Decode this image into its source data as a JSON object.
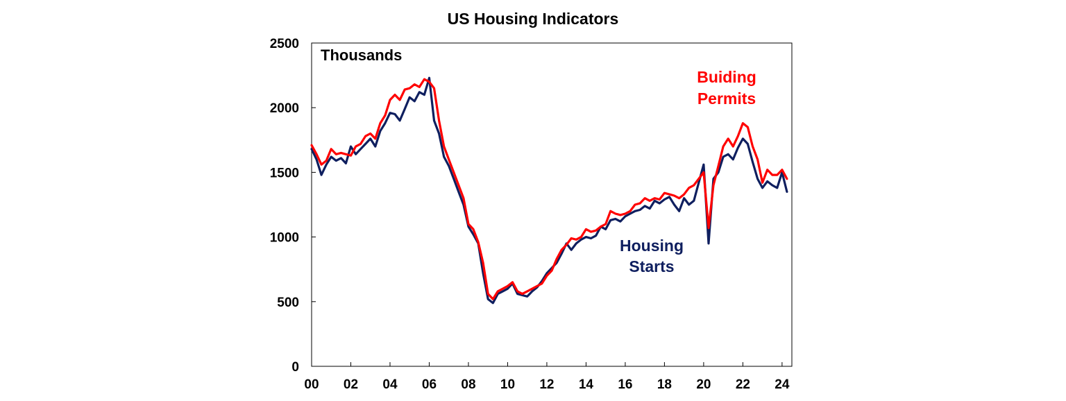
{
  "chart_data": {
    "type": "line",
    "title": "US Housing Indicators",
    "unit_label": "Thousands",
    "xlim": [
      2000,
      2024.5
    ],
    "ylim": [
      0,
      2500
    ],
    "grid": false,
    "x_ticks": [
      {
        "value": 2000,
        "label": "00"
      },
      {
        "value": 2002,
        "label": "02"
      },
      {
        "value": 2004,
        "label": "04"
      },
      {
        "value": 2006,
        "label": "06"
      },
      {
        "value": 2008,
        "label": "08"
      },
      {
        "value": 2010,
        "label": "10"
      },
      {
        "value": 2012,
        "label": "12"
      },
      {
        "value": 2014,
        "label": "14"
      },
      {
        "value": 2016,
        "label": "16"
      },
      {
        "value": 2018,
        "label": "18"
      },
      {
        "value": 2020,
        "label": "20"
      },
      {
        "value": 2022,
        "label": "22"
      },
      {
        "value": 2024,
        "label": "24"
      }
    ],
    "y_ticks": [
      {
        "value": 0,
        "label": "0"
      },
      {
        "value": 500,
        "label": "500"
      },
      {
        "value": 1000,
        "label": "1000"
      },
      {
        "value": 1500,
        "label": "1500"
      },
      {
        "value": 2000,
        "label": "2000"
      },
      {
        "value": 2500,
        "label": "2500"
      }
    ],
    "series": [
      {
        "name": "Building Permits",
        "label_lines": [
          "Buiding",
          "Permits"
        ],
        "color": "#ff0000",
        "x": [
          2000.0,
          2000.25,
          2000.5,
          2000.75,
          2001.0,
          2001.25,
          2001.5,
          2001.75,
          2002.0,
          2002.25,
          2002.5,
          2002.75,
          2003.0,
          2003.25,
          2003.5,
          2003.75,
          2004.0,
          2004.25,
          2004.5,
          2004.75,
          2005.0,
          2005.25,
          2005.5,
          2005.75,
          2006.0,
          2006.25,
          2006.5,
          2006.75,
          2007.0,
          2007.25,
          2007.5,
          2007.75,
          2008.0,
          2008.25,
          2008.5,
          2008.75,
          2009.0,
          2009.25,
          2009.5,
          2009.75,
          2010.0,
          2010.25,
          2010.5,
          2010.75,
          2011.0,
          2011.25,
          2011.5,
          2011.75,
          2012.0,
          2012.25,
          2012.5,
          2012.75,
          2013.0,
          2013.25,
          2013.5,
          2013.75,
          2014.0,
          2014.25,
          2014.5,
          2014.75,
          2015.0,
          2015.25,
          2015.5,
          2015.75,
          2016.0,
          2016.25,
          2016.5,
          2016.75,
          2017.0,
          2017.25,
          2017.5,
          2017.75,
          2018.0,
          2018.25,
          2018.5,
          2018.75,
          2019.0,
          2019.25,
          2019.5,
          2019.75,
          2020.0,
          2020.25,
          2020.5,
          2020.75,
          2021.0,
          2021.25,
          2021.5,
          2021.75,
          2022.0,
          2022.25,
          2022.5,
          2022.75,
          2023.0,
          2023.25,
          2023.5,
          2023.75,
          2024.0,
          2024.25
        ],
        "values": [
          1710,
          1640,
          1560,
          1590,
          1680,
          1640,
          1650,
          1640,
          1630,
          1700,
          1720,
          1780,
          1800,
          1760,
          1880,
          1940,
          2060,
          2100,
          2060,
          2140,
          2150,
          2180,
          2160,
          2220,
          2200,
          2150,
          1900,
          1700,
          1600,
          1500,
          1400,
          1300,
          1100,
          1060,
          960,
          800,
          560,
          520,
          580,
          600,
          620,
          650,
          580,
          560,
          580,
          600,
          620,
          640,
          700,
          740,
          830,
          900,
          940,
          990,
          980,
          1000,
          1060,
          1040,
          1050,
          1080,
          1100,
          1200,
          1180,
          1170,
          1180,
          1200,
          1250,
          1260,
          1300,
          1280,
          1300,
          1290,
          1340,
          1330,
          1320,
          1300,
          1330,
          1380,
          1400,
          1450,
          1500,
          1070,
          1400,
          1550,
          1700,
          1760,
          1700,
          1780,
          1880,
          1850,
          1700,
          1600,
          1420,
          1520,
          1480,
          1480,
          1520,
          1450
        ]
      },
      {
        "name": "Housing Starts",
        "label_lines": [
          "Housing",
          "Starts"
        ],
        "color": "#0f1f5f",
        "x": [
          2000.0,
          2000.25,
          2000.5,
          2000.75,
          2001.0,
          2001.25,
          2001.5,
          2001.75,
          2002.0,
          2002.25,
          2002.5,
          2002.75,
          2003.0,
          2003.25,
          2003.5,
          2003.75,
          2004.0,
          2004.25,
          2004.5,
          2004.75,
          2005.0,
          2005.25,
          2005.5,
          2005.75,
          2006.0,
          2006.25,
          2006.5,
          2006.75,
          2007.0,
          2007.25,
          2007.5,
          2007.75,
          2008.0,
          2008.25,
          2008.5,
          2008.75,
          2009.0,
          2009.25,
          2009.5,
          2009.75,
          2010.0,
          2010.25,
          2010.5,
          2010.75,
          2011.0,
          2011.25,
          2011.5,
          2011.75,
          2012.0,
          2012.25,
          2012.5,
          2012.75,
          2013.0,
          2013.25,
          2013.5,
          2013.75,
          2014.0,
          2014.25,
          2014.5,
          2014.75,
          2015.0,
          2015.25,
          2015.5,
          2015.75,
          2016.0,
          2016.25,
          2016.5,
          2016.75,
          2017.0,
          2017.25,
          2017.5,
          2017.75,
          2018.0,
          2018.25,
          2018.5,
          2018.75,
          2019.0,
          2019.25,
          2019.5,
          2019.75,
          2020.0,
          2020.25,
          2020.5,
          2020.75,
          2021.0,
          2021.25,
          2021.5,
          2021.75,
          2022.0,
          2022.25,
          2022.5,
          2022.75,
          2023.0,
          2023.25,
          2023.5,
          2023.75,
          2024.0,
          2024.25
        ],
        "values": [
          1680,
          1600,
          1480,
          1560,
          1620,
          1590,
          1610,
          1570,
          1700,
          1640,
          1680,
          1720,
          1760,
          1700,
          1820,
          1880,
          1960,
          1950,
          1900,
          1990,
          2080,
          2050,
          2120,
          2100,
          2230,
          1900,
          1800,
          1620,
          1550,
          1450,
          1350,
          1250,
          1080,
          1020,
          950,
          720,
          520,
          490,
          560,
          580,
          600,
          640,
          560,
          550,
          540,
          580,
          610,
          660,
          720,
          760,
          800,
          870,
          950,
          900,
          950,
          980,
          1000,
          990,
          1010,
          1080,
          1060,
          1130,
          1140,
          1120,
          1160,
          1180,
          1200,
          1210,
          1240,
          1220,
          1280,
          1260,
          1290,
          1310,
          1250,
          1200,
          1300,
          1250,
          1280,
          1420,
          1560,
          950,
          1450,
          1500,
          1620,
          1640,
          1600,
          1690,
          1760,
          1720,
          1580,
          1450,
          1380,
          1430,
          1400,
          1380,
          1500,
          1350
        ]
      }
    ]
  }
}
